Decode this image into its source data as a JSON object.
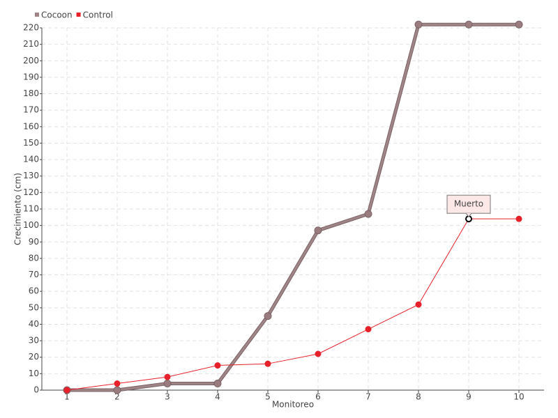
{
  "chart_data": {
    "type": "line",
    "x_label": "Monitoreo",
    "y_label": "Crecimiento (cm)",
    "categories": [
      "1",
      "2",
      "3",
      "4",
      "5",
      "6",
      "7",
      "8",
      "9",
      "10"
    ],
    "series": [
      {
        "name": "Cocoon",
        "color": "#a08587",
        "values": [
          0,
          0,
          4,
          4,
          45,
          97,
          107,
          222,
          222,
          222
        ]
      },
      {
        "name": "Control",
        "color": "#e8202a",
        "values": [
          0,
          4,
          8,
          15,
          16,
          22,
          37,
          52,
          104,
          104
        ]
      }
    ],
    "annotation": "Muerto",
    "ylim": [
      0,
      220
    ],
    "yticks": [
      0,
      10,
      20,
      30,
      40,
      50,
      60,
      70,
      80,
      90,
      100,
      110,
      120,
      130,
      140,
      150,
      160,
      170,
      180,
      190,
      200,
      210,
      220
    ],
    "grid": true,
    "legend": "top-left"
  }
}
